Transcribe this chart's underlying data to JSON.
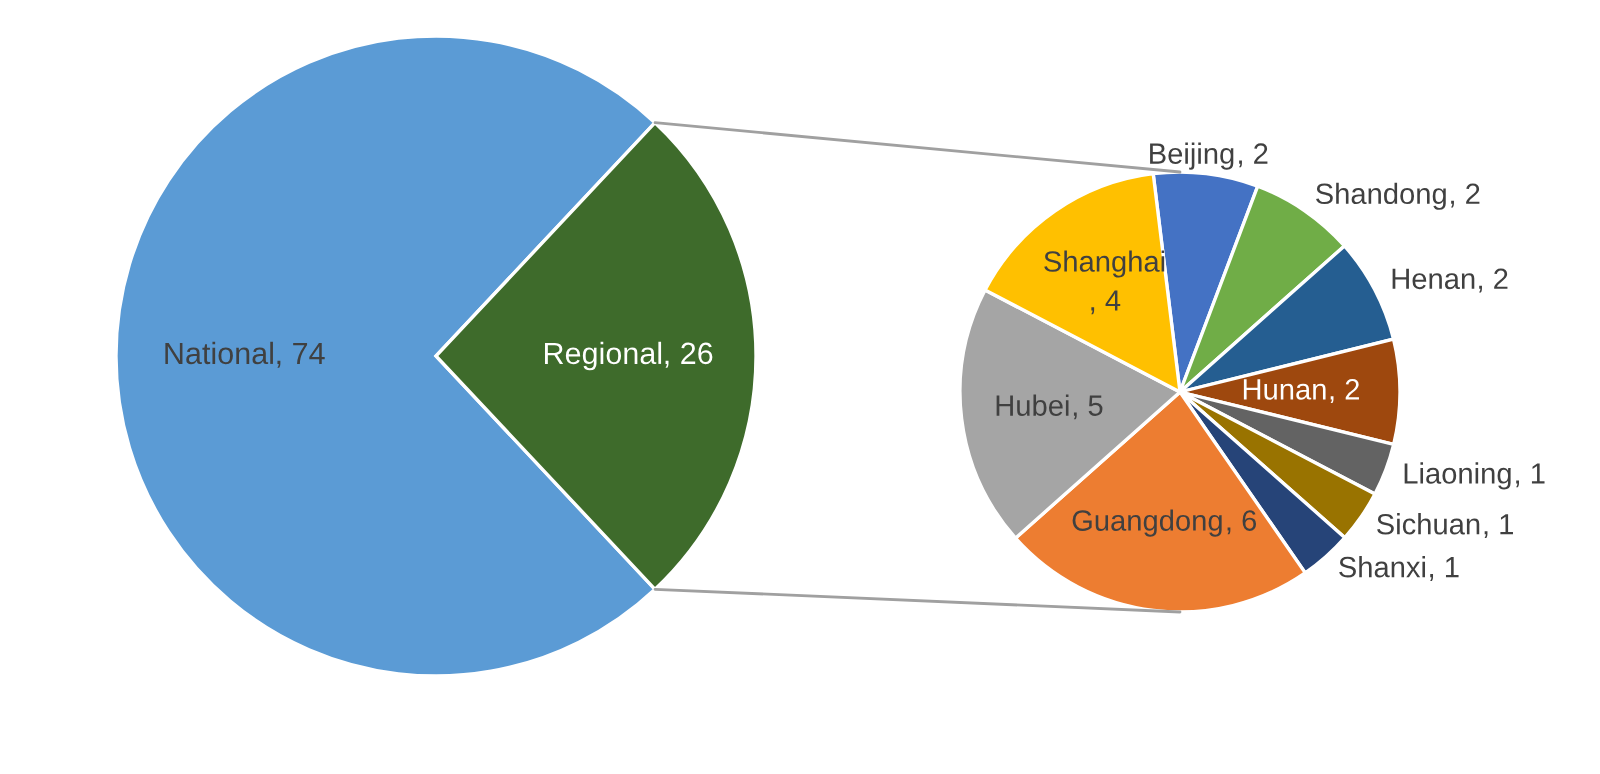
{
  "chart_data": [
    {
      "type": "pie",
      "categories": [
        "National",
        "Regional"
      ],
      "values": [
        74,
        26
      ],
      "colors": [
        "#5b9bd5",
        "#3e6b2b"
      ],
      "value_labels": [
        ", 74",
        ", 26"
      ]
    },
    {
      "type": "pie",
      "categories": [
        "Beijing",
        "Shandong",
        "Henan",
        "Hunan",
        "Liaoning",
        "Sichuan",
        "Shanxi",
        "Guangdong",
        "Hubei",
        "Shanghai"
      ],
      "values": [
        2,
        2,
        2,
        2,
        1,
        1,
        1,
        6,
        5,
        4
      ],
      "colors": [
        "#4472c4",
        "#70ad47",
        "#255e91",
        "#9e480e",
        "#636363",
        "#997300",
        "#264478",
        "#ed7d31",
        "#a5a5a5",
        "#ffc000"
      ],
      "value_labels": [
        ", 2",
        ", 2",
        ", 2",
        ", 2",
        ", 1",
        ", 1",
        ", 1",
        ", 6",
        ", 5",
        ", 4"
      ]
    }
  ]
}
